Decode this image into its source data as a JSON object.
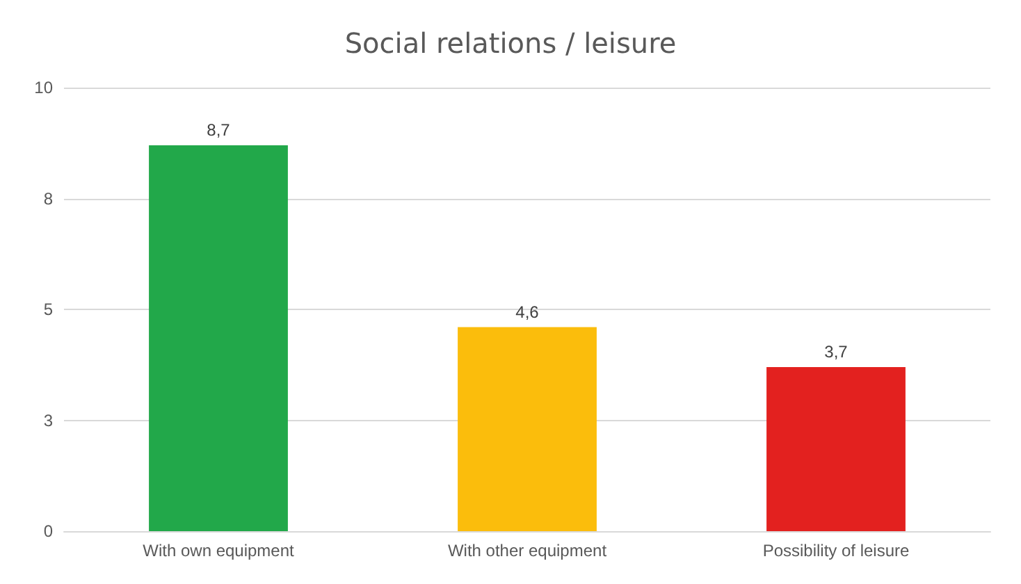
{
  "chart_data": {
    "type": "bar",
    "title": "Social relations / leisure",
    "categories": [
      "With own equipment",
      "With other equipment",
      "Possibility of leisure"
    ],
    "values": [
      8.7,
      4.6,
      3.7
    ],
    "colors": [
      "#22a84a",
      "#fbbd0c",
      "#e3211f"
    ],
    "value_labels": [
      "8,7",
      "4,6",
      "3,7"
    ],
    "ylim": [
      0,
      10
    ],
    "yticks": [
      0,
      {
        "value": 2.5,
        "label": "3"
      },
      5,
      {
        "value": 7.5,
        "label": "8"
      },
      10
    ],
    "grid": "y"
  }
}
